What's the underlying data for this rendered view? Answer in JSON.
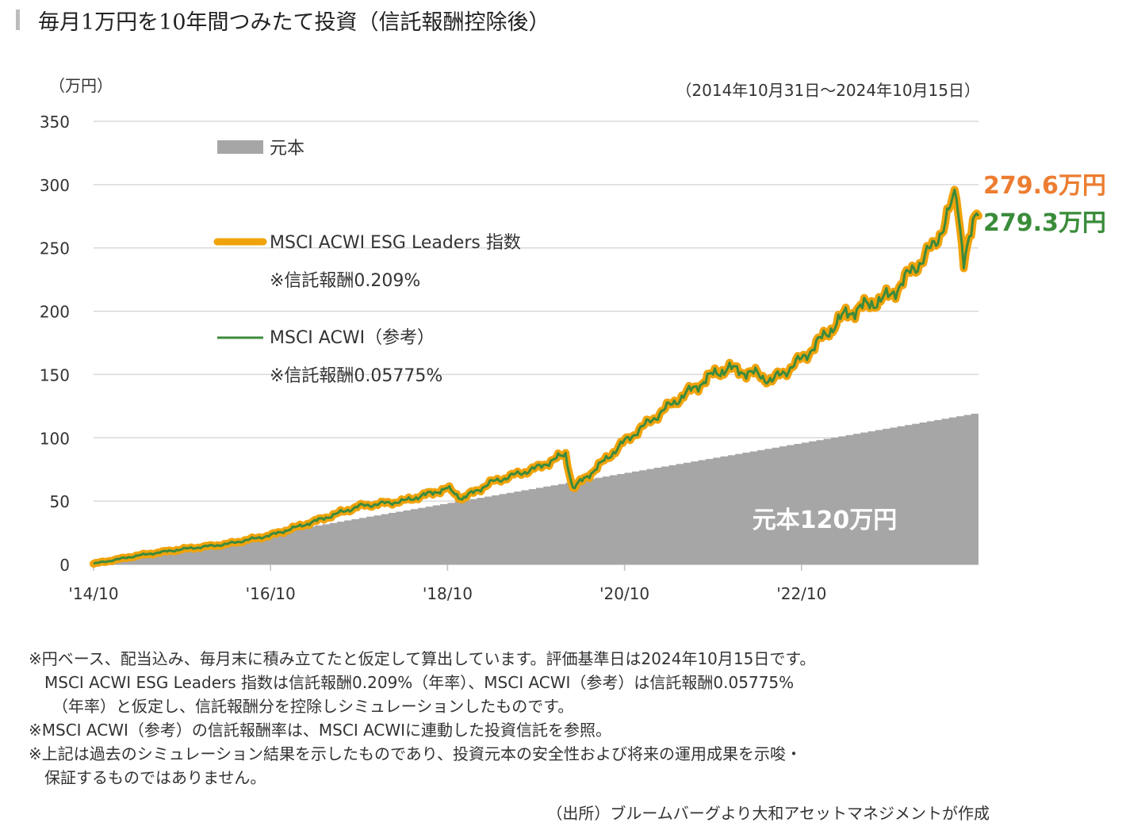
{
  "title": "毎月1万円を10年間つみたて投資（信託報酬控除後）",
  "chart_data": {
    "type": "line",
    "unit": "（万円）",
    "period": "（2014年10月31日～2024年10月15日）",
    "ylim": [
      0,
      350
    ],
    "yticks": [
      "350",
      "300",
      "250",
      "200",
      "150",
      "100",
      "50",
      "0"
    ],
    "xticks": [
      "'14/10",
      "'16/10",
      "'18/10",
      "'20/10",
      "'22/10"
    ],
    "grid": true,
    "legend_position": "upper-left",
    "principal": {
      "name": "元本",
      "label": "元本120万円",
      "final_value": 120,
      "color": "#a6a6a6"
    },
    "series": [
      {
        "name": "MSCI ACWI ESG Leaders 指数",
        "fee_note": "※信託報酬0.209%",
        "end_label": "279.6万円",
        "color": "#f0a30a",
        "end_color": "#ec7d31"
      },
      {
        "name": "MSCI ACWI（参考）",
        "fee_note": "※信託報酬0.05775%",
        "end_label": "279.3万円",
        "color": "#3c8a3c",
        "end_color": "#3a8c3a"
      }
    ],
    "x": [
      "2014/10",
      "2015/04",
      "2015/10",
      "2016/04",
      "2016/10",
      "2017/04",
      "2017/10",
      "2018/04",
      "2018/10",
      "2018/12",
      "2019/04",
      "2019/10",
      "2020/02",
      "2020/03",
      "2020/06",
      "2020/10",
      "2021/04",
      "2021/10",
      "2021/12",
      "2022/04",
      "2022/06",
      "2022/10",
      "2023/04",
      "2023/10",
      "2024/04",
      "2024/07",
      "2024/08",
      "2024/10"
    ],
    "values": [
      0.5,
      7,
      12,
      16,
      23,
      34,
      46,
      50,
      60,
      52,
      65,
      76,
      87,
      60,
      75,
      97,
      125,
      150,
      155,
      150,
      145,
      162,
      198,
      212,
      252,
      292,
      242,
      279.5
    ]
  },
  "notes": [
    "※円ベース、配当込み、毎月末に積み立てたと仮定して算出しています。評価基準日は2024年10月15日です。",
    "MSCI ACWI ESG Leaders 指数は信託報酬0.209%（年率）、MSCI ACWI（参考）は信託報酬0.05775%",
    "（年率）と仮定し、信託報酬分を控除しシミュレーションしたものです。",
    "※MSCI ACWI（参考）の信託報酬率は、MSCI ACWIに連動した投資信託を参照。",
    "※上記は過去のシミュレーション結果を示したものであり、投資元本の安全性および将来の運用成果を示唆・",
    "保証するものではありません。"
  ],
  "source": "（出所）ブルームバーグより大和アセットマネジメントが作成"
}
